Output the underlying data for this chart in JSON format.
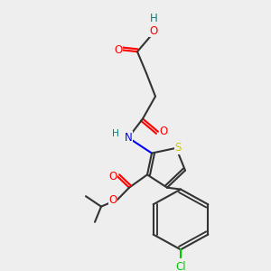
{
  "bg_color": "#eeeeee",
  "bond_color": "#333333",
  "bond_width": 1.5,
  "atom_colors": {
    "O": "#ff0000",
    "N": "#0000ff",
    "S": "#cccc00",
    "Cl": "#00cc00",
    "H_acid": "#008080",
    "C": "#333333"
  },
  "font_size_atom": 8.5,
  "font_size_small": 7.5
}
